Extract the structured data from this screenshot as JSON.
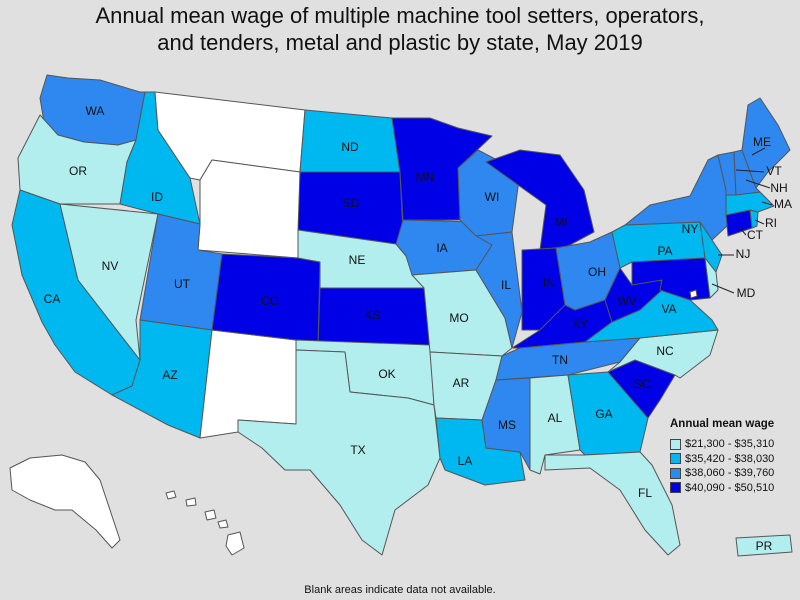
{
  "title_lines": [
    "Annual mean wage of multiple machine tool setters, operators,",
    "and tenders, metal and plastic by state, May 2019"
  ],
  "legend": {
    "title": "Annual mean wage",
    "bins": [
      {
        "label": "$21,300 - $35,310",
        "color": "#b3eeee"
      },
      {
        "label": "$35,420 - $38,030",
        "color": "#00b8f0"
      },
      {
        "label": "$38,060 - $39,760",
        "color": "#2e88f0"
      },
      {
        "label": "$40,090 - $50,510",
        "color": "#0000e6"
      }
    ],
    "no_data_color": "#ffffff"
  },
  "note": "Blank areas indicate data not available.",
  "states": {
    "WA": 3,
    "OR": 1,
    "CA": 2,
    "NV": 1,
    "ID": 2,
    "MT": 0,
    "WY": 0,
    "UT": 3,
    "AZ": 2,
    "NM": 0,
    "CO": 4,
    "ND": 2,
    "SD": 4,
    "NE": 1,
    "KS": 4,
    "OK": 1,
    "TX": 1,
    "MN": 4,
    "IA": 3,
    "MO": 1,
    "AR": 1,
    "LA": 2,
    "WI": 3,
    "IL": 3,
    "MI": 4,
    "IN": 4,
    "OH": 3,
    "KY": 4,
    "TN": 3,
    "MS": 3,
    "AL": 1,
    "GA": 2,
    "FL": 1,
    "SC": 4,
    "NC": 1,
    "VA": 2,
    "WV": 4,
    "PA": 2,
    "NY": 3,
    "VT": 3,
    "NH": 3,
    "ME": 3,
    "MA": 2,
    "RI": 2,
    "CT": 4,
    "NJ": 2,
    "DE": 1,
    "MD": 4,
    "DC": 0,
    "AK": 0,
    "HI": 0,
    "PR": 1
  }
}
